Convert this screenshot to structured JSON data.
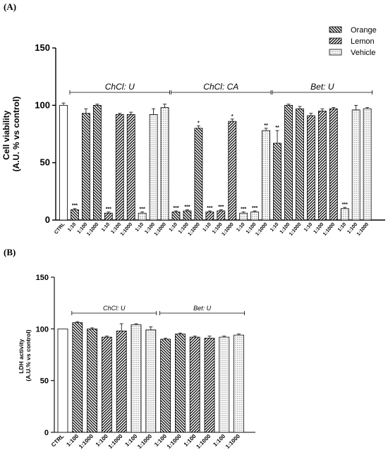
{
  "panel_labels": {
    "a": "(A)",
    "b": "(B)"
  },
  "legend": {
    "items": [
      {
        "label": "Orange",
        "pattern": "hatch-back"
      },
      {
        "label": "Lemon",
        "pattern": "hatch-fwd"
      },
      {
        "label": "Vehicle",
        "pattern": "dots"
      }
    ]
  },
  "chart_data": [
    {
      "type": "bar",
      "ylabel": [
        "Cell viability",
        "(A.U. % vs control)"
      ],
      "ylim": [
        0,
        150
      ],
      "yticks": [
        0,
        50,
        100,
        150
      ],
      "groups": [
        {
          "label": "ChCl: U",
          "from": 1,
          "to": 9
        },
        {
          "label": "ChCl: CA",
          "from": 10,
          "to": 18
        },
        {
          "label": "Bet: U",
          "from": 19,
          "to": 27
        }
      ],
      "bars": [
        {
          "category": "CTRL",
          "value": 100,
          "err": 2,
          "pattern": "open",
          "sig": ""
        },
        {
          "category": "1:10",
          "value": 9,
          "err": 1,
          "pattern": "hatch-back",
          "sig": "***"
        },
        {
          "category": "1:100",
          "value": 93,
          "err": 4,
          "pattern": "hatch-back",
          "sig": ""
        },
        {
          "category": "1:1000",
          "value": 100,
          "err": 1,
          "pattern": "hatch-back",
          "sig": ""
        },
        {
          "category": "1:10",
          "value": 6,
          "err": 1,
          "pattern": "hatch-fwd",
          "sig": "***"
        },
        {
          "category": "1:100",
          "value": 92,
          "err": 1,
          "pattern": "hatch-fwd",
          "sig": ""
        },
        {
          "category": "1:1000",
          "value": 92,
          "err": 2,
          "pattern": "hatch-fwd",
          "sig": ""
        },
        {
          "category": "1:10",
          "value": 6,
          "err": 1,
          "pattern": "dots",
          "sig": "***"
        },
        {
          "category": "1:100",
          "value": 92,
          "err": 5,
          "pattern": "dots",
          "sig": ""
        },
        {
          "category": "1:1000",
          "value": 98,
          "err": 3,
          "pattern": "dots",
          "sig": ""
        },
        {
          "category": "1:10",
          "value": 7,
          "err": 1,
          "pattern": "hatch-back",
          "sig": "***"
        },
        {
          "category": "1:100",
          "value": 8,
          "err": 1,
          "pattern": "hatch-back",
          "sig": "***"
        },
        {
          "category": "1:1000",
          "value": 80,
          "err": 2,
          "pattern": "hatch-back",
          "sig": "*"
        },
        {
          "category": "1:10",
          "value": 7,
          "err": 1,
          "pattern": "hatch-fwd",
          "sig": "***"
        },
        {
          "category": "1:100",
          "value": 8,
          "err": 1,
          "pattern": "hatch-fwd",
          "sig": "***"
        },
        {
          "category": "1:1000",
          "value": 86,
          "err": 2,
          "pattern": "hatch-fwd",
          "sig": "*"
        },
        {
          "category": "1:10",
          "value": 6,
          "err": 1,
          "pattern": "dots",
          "sig": "***"
        },
        {
          "category": "1:100",
          "value": 7,
          "err": 1,
          "pattern": "dots",
          "sig": "***"
        },
        {
          "category": "1:1000",
          "value": 78,
          "err": 2,
          "pattern": "dots",
          "sig": "**"
        },
        {
          "category": "1:10",
          "value": 67,
          "err": 11,
          "pattern": "hatch-back",
          "sig": "**"
        },
        {
          "category": "1:100",
          "value": 100,
          "err": 1,
          "pattern": "hatch-back",
          "sig": ""
        },
        {
          "category": "1:1000",
          "value": 97,
          "err": 2,
          "pattern": "hatch-back",
          "sig": ""
        },
        {
          "category": "1:10",
          "value": 91,
          "err": 2,
          "pattern": "hatch-fwd",
          "sig": ""
        },
        {
          "category": "1:100",
          "value": 95,
          "err": 2,
          "pattern": "hatch-fwd",
          "sig": ""
        },
        {
          "category": "1:1000",
          "value": 97,
          "err": 1,
          "pattern": "hatch-fwd",
          "sig": ""
        },
        {
          "category": "1:10",
          "value": 10,
          "err": 1,
          "pattern": "dots",
          "sig": "***"
        },
        {
          "category": "1:100",
          "value": 96,
          "err": 4,
          "pattern": "dots",
          "sig": ""
        },
        {
          "category": "1:1000",
          "value": 97,
          "err": 1,
          "pattern": "dots",
          "sig": ""
        }
      ]
    },
    {
      "type": "bar",
      "ylabel": [
        "LDH activity",
        "(A.U.% vs control)"
      ],
      "ylim": [
        0,
        150
      ],
      "yticks": [
        0,
        50,
        100,
        150
      ],
      "groups": [
        {
          "label": "ChCl: U",
          "from": 1,
          "to": 6
        },
        {
          "label": "Bet: U",
          "from": 7,
          "to": 12
        }
      ],
      "bars": [
        {
          "category": "CTRL",
          "value": 100,
          "err": 0,
          "pattern": "open"
        },
        {
          "category": "1:100",
          "value": 106,
          "err": 1,
          "pattern": "hatch-back"
        },
        {
          "category": "1:1000",
          "value": 100,
          "err": 1,
          "pattern": "hatch-back"
        },
        {
          "category": "1:100",
          "value": 92,
          "err": 1,
          "pattern": "hatch-fwd"
        },
        {
          "category": "1:1000",
          "value": 98,
          "err": 7,
          "pattern": "hatch-fwd"
        },
        {
          "category": "1:100",
          "value": 104,
          "err": 1,
          "pattern": "dots"
        },
        {
          "category": "1:1000",
          "value": 99,
          "err": 3,
          "pattern": "dots"
        },
        {
          "category": "1:100",
          "value": 90,
          "err": 1,
          "pattern": "hatch-back"
        },
        {
          "category": "1:1000",
          "value": 95,
          "err": 1,
          "pattern": "hatch-back"
        },
        {
          "category": "1:100",
          "value": 92,
          "err": 1,
          "pattern": "hatch-fwd"
        },
        {
          "category": "1:1000",
          "value": 91,
          "err": 2,
          "pattern": "hatch-fwd"
        },
        {
          "category": "1:100",
          "value": 92,
          "err": 1,
          "pattern": "dots"
        },
        {
          "category": "1:1000",
          "value": 94,
          "err": 1,
          "pattern": "dots"
        }
      ]
    }
  ]
}
